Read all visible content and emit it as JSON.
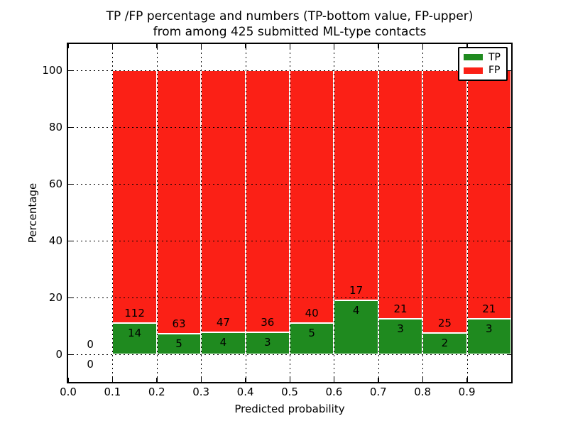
{
  "chart_data": {
    "type": "bar",
    "stacked": true,
    "title_line1": "TP /FP percentage and numbers (TP-bottom value, FP-upper)",
    "title_line2": "from among 425 submitted ML-type contacts",
    "xlabel": "Predicted probability",
    "ylabel": "Percentage",
    "x_ticks": [
      "0.0",
      "0.1",
      "0.2",
      "0.3",
      "0.4",
      "0.5",
      "0.6",
      "0.7",
      "0.8",
      "0.9"
    ],
    "y_ticks": [
      "0",
      "20",
      "40",
      "60",
      "80",
      "100"
    ],
    "xlim": [
      0.0,
      1.0
    ],
    "ylim": [
      -9.75,
      109.25
    ],
    "bin_width": 0.1,
    "total_contacts": "425",
    "grid": "dotted",
    "legend_position": "upper right",
    "colors": {
      "tp": "#1f8a1f",
      "fp": "#fb2016",
      "grid": "#000000",
      "frame": "#000000",
      "background": "#ffffff",
      "bar_edge": "#ffffff"
    },
    "series": [
      {
        "name": "TP",
        "color": "#1f8a1f",
        "values": [
          0,
          14,
          5,
          4,
          3,
          5,
          4,
          3,
          2,
          3
        ]
      },
      {
        "name": "FP",
        "color": "#fb2016",
        "values": [
          0,
          112,
          63,
          47,
          36,
          40,
          17,
          21,
          25,
          21
        ]
      }
    ],
    "bins": [
      {
        "x0": 0.0,
        "tp": 0,
        "fp": 0
      },
      {
        "x0": 0.1,
        "tp": 14,
        "fp": 112
      },
      {
        "x0": 0.2,
        "tp": 5,
        "fp": 63
      },
      {
        "x0": 0.3,
        "tp": 4,
        "fp": 47
      },
      {
        "x0": 0.4,
        "tp": 3,
        "fp": 36
      },
      {
        "x0": 0.5,
        "tp": 5,
        "fp": 40
      },
      {
        "x0": 0.6,
        "tp": 4,
        "fp": 17
      },
      {
        "x0": 0.7,
        "tp": 3,
        "fp": 21
      },
      {
        "x0": 0.8,
        "tp": 2,
        "fp": 25
      },
      {
        "x0": 0.9,
        "tp": 3,
        "fp": 21
      }
    ]
  }
}
